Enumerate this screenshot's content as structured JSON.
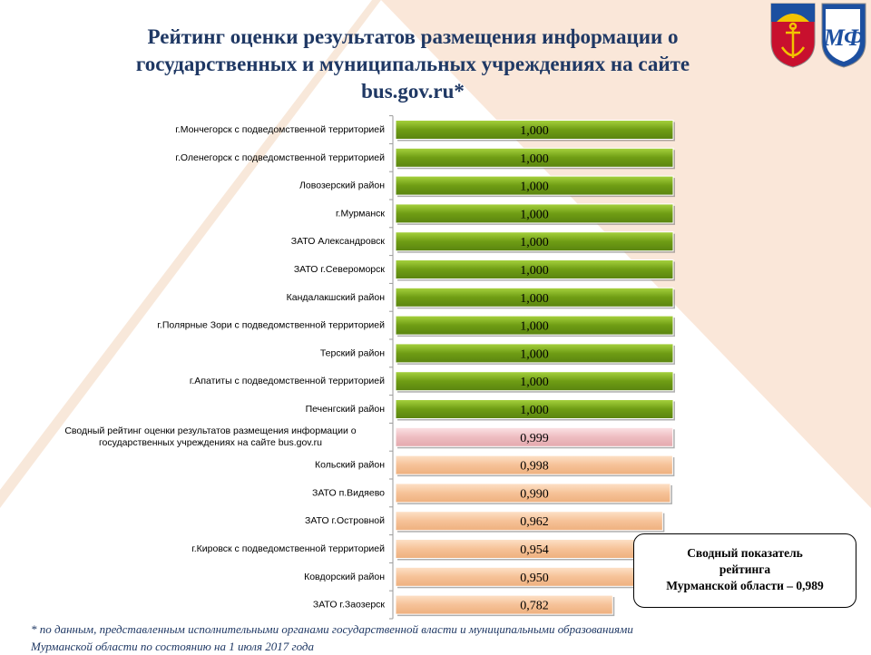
{
  "title": {
    "line1": "Рейтинг оценки результатов  размещения  информации о",
    "line2": "государственных и муниципальных учреждениях на сайте",
    "line3": "bus.gov.ru*"
  },
  "emblems": [
    {
      "name": "murmansk-oblast-coat-of-arms",
      "colors": [
        "#c8102e",
        "#1c4fa0",
        "#f2c300"
      ]
    },
    {
      "name": "ministry-finance-logo",
      "text": "МФ",
      "colors": [
        "#1c4fa0",
        "#f2c300"
      ]
    }
  ],
  "chart_data": {
    "type": "bar",
    "orientation": "horizontal",
    "categories": [
      "г.Мончегорск с подведомственной территорией",
      "г.Оленегорск  с подведомственной территорией",
      "Ловозерский район",
      "г.Мурманск",
      "ЗАТО Александровск",
      "ЗАТО г.Североморск",
      "Кандалакшский  район",
      "г.Полярные Зори с подведомственной территорией",
      "Терский район",
      "г.Апатиты  с подведомственной территорией",
      "Печенгский район",
      [
        "Сводный рейтинг оценки результатов размещения информации о",
        "государственных  учреждениях  на сайте bus.gov.ru"
      ],
      "Кольский район",
      "ЗАТО п.Видяево",
      "ЗАТО г.Островной",
      "г.Кировск  с подведомственной территорией",
      "Ковдорский район",
      "ЗАТО г.Заозерск"
    ],
    "values": [
      1.0,
      1.0,
      1.0,
      1.0,
      1.0,
      1.0,
      1.0,
      1.0,
      1.0,
      1.0,
      1.0,
      0.999,
      0.998,
      0.99,
      0.962,
      0.954,
      0.95,
      0.782
    ],
    "value_labels": [
      "1,000",
      "1,000",
      "1,000",
      "1,000",
      "1,000",
      "1,000",
      "1,000",
      "1,000",
      "1,000",
      "1,000",
      "1,000",
      "0,999",
      "0,998",
      "0,990",
      "0,962",
      "0,954",
      "0,950",
      "0,782"
    ],
    "bar_colors": [
      "green",
      "green",
      "green",
      "green",
      "green",
      "green",
      "green",
      "green",
      "green",
      "green",
      "green",
      "pink",
      "orange",
      "orange",
      "orange",
      "orange",
      "orange",
      "orange"
    ],
    "palette": {
      "green": "#7fac1c",
      "pink": "#f2c9cc",
      "orange": "#f8c9a2"
    },
    "xlim": [
      0,
      1.0
    ],
    "grid": false,
    "legend": "none"
  },
  "summary": {
    "line1": "Сводный показатель",
    "line2": "рейтинга",
    "line3": "Мурманской области – 0,989"
  },
  "footnote": {
    "line1": "* по данным, представленным  исполнительными органами государственной власти и муниципальными образованиями",
    "line2": "Мурманской области по состоянию на 1 июля 2017 года"
  }
}
